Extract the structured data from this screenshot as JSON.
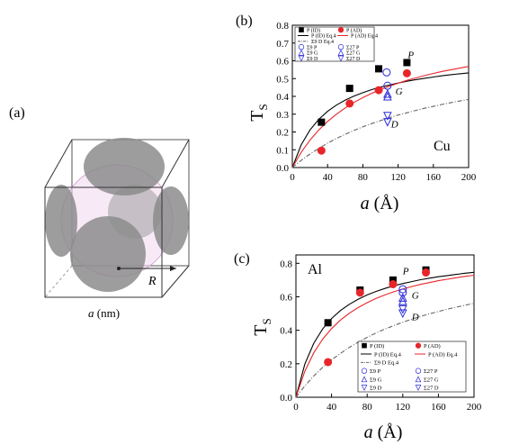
{
  "panel_a": {
    "label": "(a)",
    "radius_label": "R",
    "xlabel_var": "a",
    "xlabel_unit": " (nm)"
  },
  "chart_data": [
    {
      "id": "b",
      "panel_label": "(b)",
      "type": "scatter",
      "material": "Cu",
      "xlabel_var": "a",
      "xlabel_unit": " (Å)",
      "ylabel": "T",
      "ylabel_sub": "S",
      "xlim": [
        0,
        200
      ],
      "ylim": [
        0,
        0.8
      ],
      "xticks": [
        0,
        40,
        80,
        120,
        160,
        200
      ],
      "yticks": [
        0.0,
        0.1,
        0.2,
        0.3,
        0.4,
        0.5,
        0.6,
        0.7,
        0.8
      ],
      "legend_position": "top",
      "series": [
        {
          "name": "P (ID)",
          "marker": "square",
          "color": "#000000",
          "x": [
            33,
            65,
            98,
            130
          ],
          "y": [
            0.255,
            0.445,
            0.555,
            0.59
          ]
        },
        {
          "name": "P (AD)",
          "marker": "circle",
          "color": "#e8262a",
          "x": [
            33,
            65,
            98,
            130
          ],
          "y": [
            0.095,
            0.36,
            0.435,
            0.53
          ]
        },
        {
          "name": "Σ9 P",
          "marker": "circle-open",
          "color": "#2b2bd9",
          "x": [
            108
          ],
          "y": [
            0.46
          ]
        },
        {
          "name": "Σ9 G",
          "marker": "triangle-open",
          "color": "#2b2bd9",
          "x": [
            108
          ],
          "y": [
            0.415
          ]
        },
        {
          "name": "Σ9 D",
          "marker": "tri-down-open",
          "color": "#2b2bd9",
          "x": [
            108
          ],
          "y": [
            0.29
          ]
        },
        {
          "name": "Σ27 P",
          "marker": "circle-open",
          "color": "#2b2bd9",
          "x": [
            107
          ],
          "y": [
            0.535
          ]
        },
        {
          "name": "Σ27 G",
          "marker": "triangle-open",
          "color": "#2b2bd9",
          "x": [
            108
          ],
          "y": [
            0.4
          ]
        },
        {
          "name": "Σ27 D",
          "marker": "tri-down-open",
          "color": "#2b2bd9",
          "x": [
            108
          ],
          "y": [
            0.255
          ]
        }
      ],
      "curves": [
        {
          "name": "P (ID) Eq.4",
          "style": "solid",
          "color": "#000000",
          "x": [
            0,
            10,
            20,
            30,
            40,
            50,
            60,
            70,
            80,
            90,
            100,
            110,
            120,
            130,
            140,
            150,
            160,
            170,
            180,
            190,
            200
          ],
          "y": [
            0,
            0.127,
            0.211,
            0.271,
            0.316,
            0.351,
            0.379,
            0.402,
            0.421,
            0.438,
            0.452,
            0.464,
            0.475,
            0.485,
            0.494,
            0.502,
            0.509,
            0.516,
            0.522,
            0.527,
            0.532
          ]
        },
        {
          "name": "P (AD) Eq.4",
          "style": "solid",
          "color": "#e8262a",
          "x": [
            0,
            10,
            20,
            30,
            40,
            50,
            60,
            70,
            80,
            90,
            100,
            110,
            120,
            130,
            140,
            150,
            160,
            170,
            180,
            190,
            200
          ],
          "y": [
            0,
            0.085,
            0.154,
            0.211,
            0.259,
            0.3,
            0.335,
            0.366,
            0.393,
            0.417,
            0.438,
            0.457,
            0.474,
            0.49,
            0.504,
            0.517,
            0.529,
            0.54,
            0.55,
            0.559,
            0.568
          ]
        },
        {
          "name": "Σ9 D Eq.4",
          "style": "dashdot",
          "color": "#666666",
          "x": [
            0,
            10,
            20,
            30,
            40,
            50,
            60,
            70,
            80,
            90,
            100,
            110,
            120,
            130,
            140,
            150,
            160,
            170,
            180,
            190,
            200
          ],
          "y": [
            0,
            0.04,
            0.076,
            0.108,
            0.137,
            0.163,
            0.187,
            0.209,
            0.229,
            0.247,
            0.264,
            0.28,
            0.295,
            0.308,
            0.321,
            0.333,
            0.344,
            0.355,
            0.365,
            0.374,
            0.383
          ]
        }
      ],
      "annotations": [
        {
          "text": "P",
          "x": 131,
          "y": 0.615
        },
        {
          "text": "G",
          "x": 117,
          "y": 0.41
        },
        {
          "text": "D",
          "x": 112,
          "y": 0.225
        }
      ]
    },
    {
      "id": "c",
      "panel_label": "(c)",
      "type": "scatter",
      "material": "Al",
      "xlabel_var": "a",
      "xlabel_unit": " (Å)",
      "ylabel": "T",
      "ylabel_sub": "S",
      "xlim": [
        0,
        200
      ],
      "ylim": [
        0,
        0.85
      ],
      "xticks": [
        0,
        40,
        80,
        120,
        160,
        200
      ],
      "yticks": [
        0.0,
        0.2,
        0.4,
        0.6,
        0.8
      ],
      "legend_position": "bottom-right",
      "series": [
        {
          "name": "P (ID)",
          "marker": "square",
          "color": "#000000",
          "x": [
            36,
            72,
            109,
            146
          ],
          "y": [
            0.445,
            0.64,
            0.7,
            0.76
          ]
        },
        {
          "name": "P (AD)",
          "marker": "circle",
          "color": "#e8262a",
          "x": [
            36,
            72,
            109,
            146
          ],
          "y": [
            0.21,
            0.625,
            0.675,
            0.745
          ]
        },
        {
          "name": "Σ9 P",
          "marker": "circle-open",
          "color": "#2b2bd9",
          "x": [
            120
          ],
          "y": [
            0.645
          ]
        },
        {
          "name": "Σ9 G",
          "marker": "triangle-open",
          "color": "#2b2bd9",
          "x": [
            120
          ],
          "y": [
            0.595
          ]
        },
        {
          "name": "Σ9 D",
          "marker": "tri-down-open",
          "color": "#2b2bd9",
          "x": [
            120
          ],
          "y": [
            0.525
          ]
        },
        {
          "name": "Σ27 P",
          "marker": "circle-open",
          "color": "#2b2bd9",
          "x": [
            120
          ],
          "y": [
            0.625
          ]
        },
        {
          "name": "Σ27 G",
          "marker": "triangle-open",
          "color": "#2b2bd9",
          "x": [
            120
          ],
          "y": [
            0.575
          ]
        },
        {
          "name": "Σ27 D",
          "marker": "tri-down-open",
          "color": "#2b2bd9",
          "x": [
            120
          ],
          "y": [
            0.5
          ]
        }
      ],
      "curves": [
        {
          "name": "P (ID) Eq.4",
          "style": "solid",
          "color": "#000000",
          "x": [
            0,
            10,
            20,
            30,
            40,
            50,
            60,
            70,
            80,
            90,
            100,
            110,
            120,
            130,
            140,
            150,
            160,
            170,
            180,
            190,
            200
          ],
          "y": [
            0,
            0.198,
            0.322,
            0.408,
            0.47,
            0.518,
            0.555,
            0.586,
            0.611,
            0.632,
            0.65,
            0.666,
            0.679,
            0.691,
            0.702,
            0.711,
            0.72,
            0.727,
            0.734,
            0.741,
            0.746
          ]
        },
        {
          "name": "P (AD) Eq.4",
          "style": "solid",
          "color": "#e8262a",
          "x": [
            0,
            10,
            20,
            30,
            40,
            50,
            60,
            70,
            80,
            90,
            100,
            110,
            120,
            130,
            140,
            150,
            160,
            170,
            180,
            190,
            200
          ],
          "y": [
            0,
            0.155,
            0.265,
            0.347,
            0.41,
            0.461,
            0.502,
            0.536,
            0.565,
            0.59,
            0.611,
            0.63,
            0.646,
            0.661,
            0.674,
            0.685,
            0.696,
            0.705,
            0.714,
            0.722,
            0.729
          ]
        },
        {
          "name": "Σ9 D Eq.4",
          "style": "dashdot",
          "color": "#666666",
          "x": [
            0,
            10,
            20,
            30,
            40,
            50,
            60,
            70,
            80,
            90,
            100,
            110,
            120,
            130,
            140,
            150,
            160,
            170,
            180,
            190,
            200
          ],
          "y": [
            0,
            0.068,
            0.127,
            0.178,
            0.223,
            0.262,
            0.298,
            0.329,
            0.358,
            0.384,
            0.407,
            0.428,
            0.448,
            0.466,
            0.483,
            0.498,
            0.512,
            0.526,
            0.538,
            0.55,
            0.561
          ]
        }
      ],
      "annotations": [
        {
          "text": "P",
          "x": 120,
          "y": 0.735
        },
        {
          "text": "G",
          "x": 130,
          "y": 0.59
        },
        {
          "text": "D",
          "x": 130,
          "y": 0.46
        }
      ]
    }
  ]
}
